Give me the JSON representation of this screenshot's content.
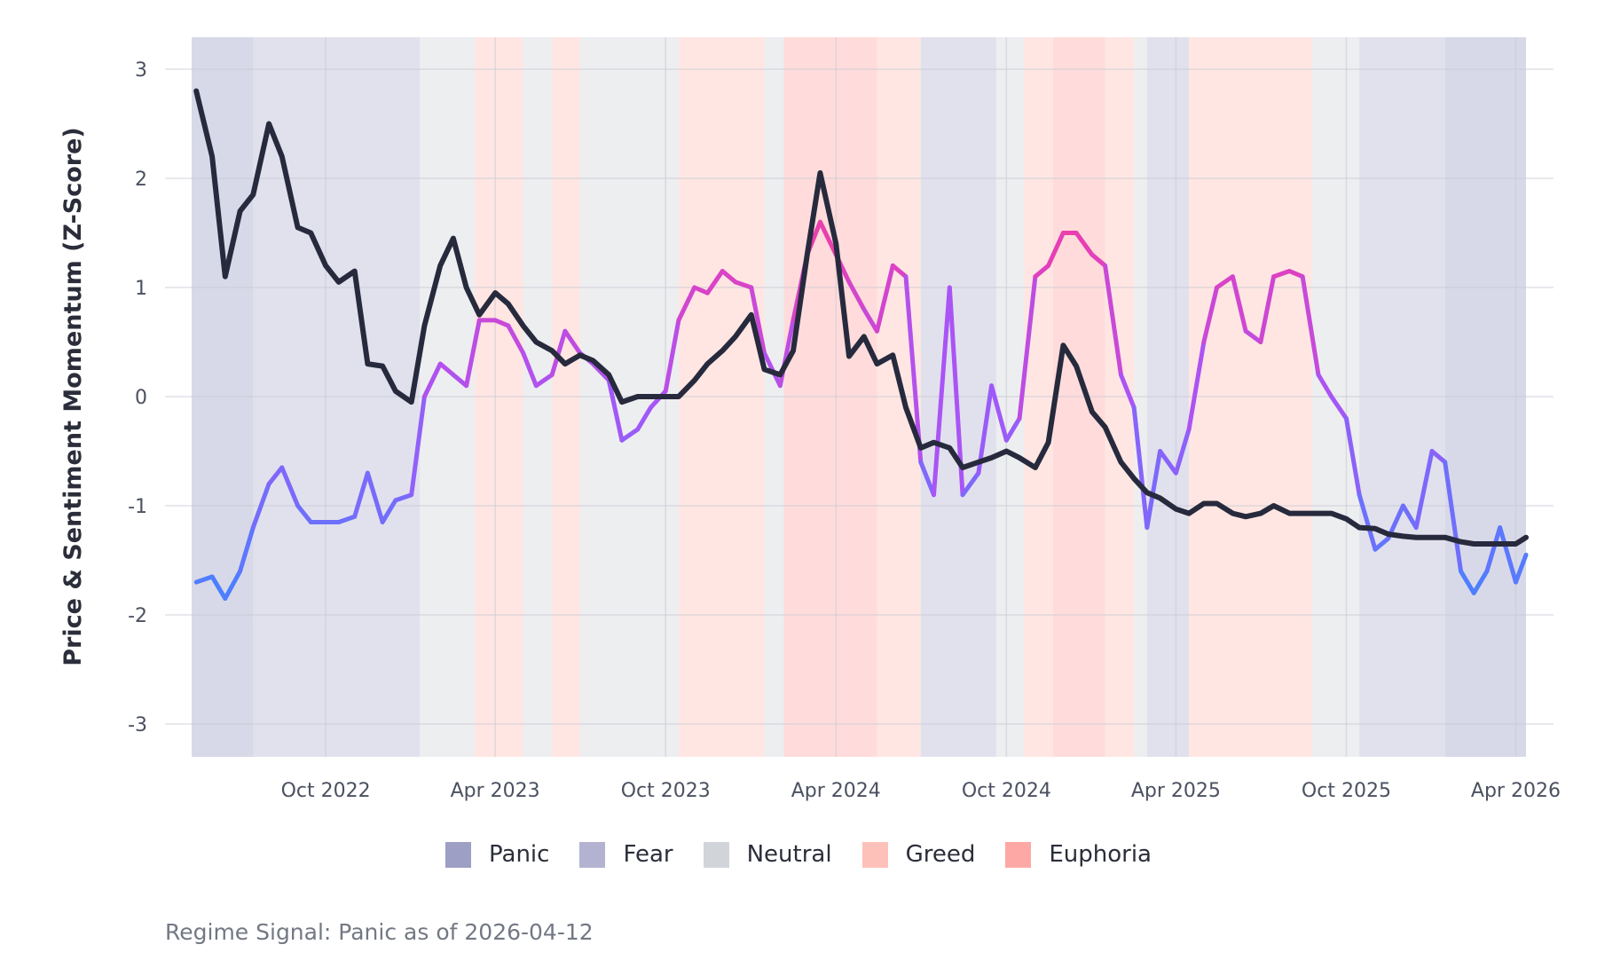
{
  "chart_data": {
    "type": "line",
    "title": "",
    "xlabel": "",
    "ylabel": "Price & Sentiment Momentum (Z-Score)",
    "ylim": [
      -3.3,
      3.3
    ],
    "xlim": [
      "2022-05-10",
      "2026-04-12"
    ],
    "yticks": [
      3,
      2,
      1,
      0,
      -1,
      -2,
      -3
    ],
    "xticks": [
      {
        "date": "2022-10-01",
        "label": "Oct 2022"
      },
      {
        "date": "2023-04-01",
        "label": "Apr 2023"
      },
      {
        "date": "2023-10-01",
        "label": "Oct 2023"
      },
      {
        "date": "2024-04-01",
        "label": "Apr 2024"
      },
      {
        "date": "2024-10-01",
        "label": "Oct 2024"
      },
      {
        "date": "2025-04-01",
        "label": "Apr 2025"
      },
      {
        "date": "2025-10-01",
        "label": "Oct 2025"
      },
      {
        "date": "2026-04-01",
        "label": "Apr 2026"
      }
    ],
    "grid": true,
    "legend_position": "bottom",
    "x": [
      "2022-05-15",
      "2022-06-01",
      "2022-06-15",
      "2022-07-01",
      "2022-07-15",
      "2022-08-01",
      "2022-08-15",
      "2022-09-01",
      "2022-09-15",
      "2022-10-01",
      "2022-10-15",
      "2022-11-01",
      "2022-11-15",
      "2022-12-01",
      "2022-12-15",
      "2023-01-01",
      "2023-01-15",
      "2023-02-01",
      "2023-02-15",
      "2023-03-01",
      "2023-03-15",
      "2023-04-01",
      "2023-04-15",
      "2023-05-01",
      "2023-05-15",
      "2023-06-01",
      "2023-06-15",
      "2023-07-01",
      "2023-07-15",
      "2023-08-01",
      "2023-08-15",
      "2023-09-01",
      "2023-09-15",
      "2023-10-01",
      "2023-10-15",
      "2023-11-01",
      "2023-11-15",
      "2023-12-01",
      "2023-12-15",
      "2024-01-01",
      "2024-01-15",
      "2024-02-01",
      "2024-02-15",
      "2024-03-01",
      "2024-03-15",
      "2024-04-01",
      "2024-04-15",
      "2024-05-01",
      "2024-05-15",
      "2024-06-01",
      "2024-06-15",
      "2024-07-01",
      "2024-07-15",
      "2024-08-01",
      "2024-08-15",
      "2024-09-01",
      "2024-09-15",
      "2024-10-01",
      "2024-10-15",
      "2024-11-01",
      "2024-11-15",
      "2024-12-01",
      "2024-12-15",
      "2025-01-01",
      "2025-01-15",
      "2025-02-01",
      "2025-02-15",
      "2025-03-01",
      "2025-03-15",
      "2025-04-01",
      "2025-04-15",
      "2025-05-01",
      "2025-05-15",
      "2025-06-01",
      "2025-06-15",
      "2025-07-01",
      "2025-07-15",
      "2025-08-01",
      "2025-08-15",
      "2025-09-01",
      "2025-09-15",
      "2025-10-01",
      "2025-10-15",
      "2025-11-01",
      "2025-11-15",
      "2025-12-01",
      "2025-12-15",
      "2026-01-01",
      "2026-01-15",
      "2026-02-01",
      "2026-02-15",
      "2026-03-01",
      "2026-03-15",
      "2026-04-01",
      "2026-04-12"
    ],
    "series": [
      {
        "key": "price",
        "color": "#272a3d",
        "values": [
          2.8,
          2.2,
          1.1,
          1.7,
          1.85,
          2.5,
          2.2,
          1.55,
          1.5,
          1.2,
          1.05,
          1.15,
          0.3,
          0.28,
          0.05,
          -0.05,
          0.65,
          1.2,
          1.45,
          1.0,
          0.75,
          0.95,
          0.85,
          0.65,
          0.5,
          0.42,
          0.3,
          0.38,
          0.33,
          0.2,
          -0.05,
          0,
          0,
          0,
          0,
          0.15,
          0.3,
          0.42,
          0.55,
          0.75,
          0.25,
          0.2,
          0.42,
          1.3,
          2.05,
          1.4,
          0.37,
          0.55,
          0.3,
          0.38,
          -0.1,
          -0.47,
          -0.42,
          -0.47,
          -0.65,
          -0.6,
          -0.56,
          -0.5,
          -0.56,
          -0.65,
          -0.42,
          0.47,
          0.28,
          -0.14,
          -0.28,
          -0.6,
          -0.75,
          -0.88,
          -0.93,
          -1.03,
          -1.07,
          -0.98,
          -0.98,
          -1.07,
          -1.1,
          -1.07,
          -1.0,
          -1.07,
          -1.07,
          -1.07,
          -1.07,
          -1.12,
          -1.2,
          -1.21,
          -1.26,
          -1.28,
          -1.29,
          -1.29,
          -1.29,
          -1.33,
          -1.35,
          -1.35,
          -1.35,
          -1.35,
          -1.29
        ]
      },
      {
        "key": "sentiment",
        "color_scale": [
          "#4a80ff",
          "#a855f7",
          "#e040c0",
          "#ff3d8b"
        ],
        "values": [
          -1.7,
          -1.65,
          -1.85,
          -1.6,
          -1.2,
          -0.8,
          -0.65,
          -1.0,
          -1.15,
          -1.15,
          -1.15,
          -1.1,
          -0.7,
          -1.15,
          -0.95,
          -0.9,
          0.0,
          0.3,
          0.2,
          0.1,
          0.7,
          0.7,
          0.65,
          0.4,
          0.1,
          0.2,
          0.6,
          0.4,
          0.3,
          0.15,
          -0.4,
          -0.3,
          -0.1,
          0.05,
          0.7,
          1.0,
          0.95,
          1.15,
          1.05,
          1.0,
          0.4,
          0.1,
          0.7,
          1.3,
          1.6,
          1.3,
          1.05,
          0.8,
          0.6,
          1.2,
          1.1,
          -0.6,
          -0.9,
          1.0,
          -0.9,
          -0.7,
          0.1,
          -0.4,
          -0.2,
          1.1,
          1.2,
          1.5,
          1.5,
          1.3,
          1.2,
          0.2,
          -0.1,
          -1.2,
          -0.5,
          -0.7,
          -0.3,
          0.5,
          1.0,
          1.1,
          0.6,
          0.5,
          1.1,
          1.15,
          1.1,
          0.2,
          0.0,
          -0.2,
          -0.9,
          -1.4,
          -1.3,
          -1.0,
          -1.2,
          -0.5,
          -0.6,
          -1.6,
          -1.8,
          -1.6,
          -1.2,
          -1.7,
          -1.45
        ]
      }
    ],
    "regimes": [
      {
        "start": "2022-05-10",
        "end": "2022-07-15",
        "regime": "Panic"
      },
      {
        "start": "2022-07-15",
        "end": "2023-01-10",
        "regime": "Fear"
      },
      {
        "start": "2023-01-10",
        "end": "2023-03-10",
        "regime": "Neutral"
      },
      {
        "start": "2023-03-10",
        "end": "2023-05-01",
        "regime": "Greed"
      },
      {
        "start": "2023-05-01",
        "end": "2023-06-01",
        "regime": "Neutral"
      },
      {
        "start": "2023-06-01",
        "end": "2023-07-01",
        "regime": "Greed"
      },
      {
        "start": "2023-07-01",
        "end": "2023-10-15",
        "regime": "Neutral"
      },
      {
        "start": "2023-10-15",
        "end": "2024-01-15",
        "regime": "Greed"
      },
      {
        "start": "2024-01-15",
        "end": "2024-02-05",
        "regime": "Neutral"
      },
      {
        "start": "2024-02-05",
        "end": "2024-05-15",
        "regime": "Euphoria"
      },
      {
        "start": "2024-05-15",
        "end": "2024-07-01",
        "regime": "Greed"
      },
      {
        "start": "2024-07-01",
        "end": "2024-09-20",
        "regime": "Fear"
      },
      {
        "start": "2024-09-20",
        "end": "2024-10-20",
        "regime": "Neutral"
      },
      {
        "start": "2024-10-20",
        "end": "2024-11-20",
        "regime": "Greed"
      },
      {
        "start": "2024-11-20",
        "end": "2025-01-15",
        "regime": "Euphoria"
      },
      {
        "start": "2025-01-15",
        "end": "2025-02-15",
        "regime": "Greed"
      },
      {
        "start": "2025-02-15",
        "end": "2025-03-01",
        "regime": "Neutral"
      },
      {
        "start": "2025-03-01",
        "end": "2025-04-15",
        "regime": "Fear"
      },
      {
        "start": "2025-04-15",
        "end": "2025-08-25",
        "regime": "Greed"
      },
      {
        "start": "2025-08-25",
        "end": "2025-10-15",
        "regime": "Neutral"
      },
      {
        "start": "2025-10-15",
        "end": "2026-01-15",
        "regime": "Fear"
      },
      {
        "start": "2026-01-15",
        "end": "2026-04-12",
        "regime": "Panic"
      }
    ]
  },
  "legend": [
    {
      "label": "Panic",
      "color": "#9d9fc5"
    },
    {
      "label": "Fear",
      "color": "#b3b3d1"
    },
    {
      "label": "Neutral",
      "color": "#d1d5d9"
    },
    {
      "label": "Greed",
      "color": "#fec1b9"
    },
    {
      "label": "Euphoria",
      "color": "#fea8a6"
    }
  ],
  "footer": "Regime Signal: Panic as of 2026-04-12"
}
